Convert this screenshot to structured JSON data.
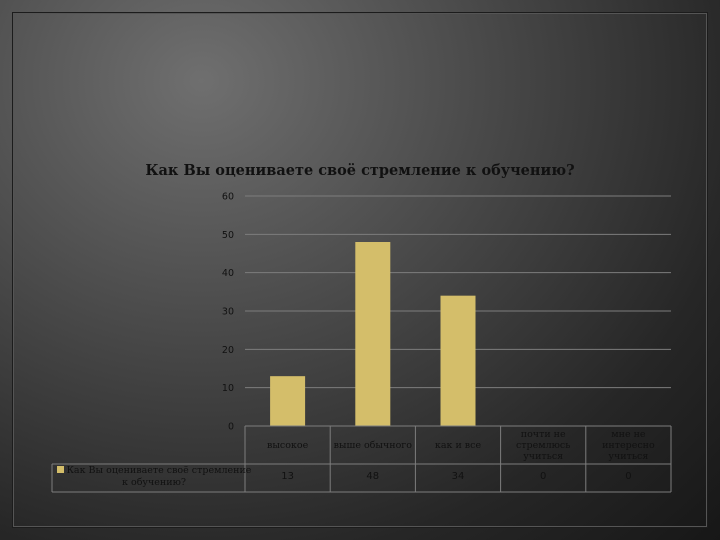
{
  "chart_data": {
    "type": "bar",
    "title": "Как Вы оцениваете своё стремление к обучению?",
    "categories": [
      "высокое",
      "выше обычного",
      "как и все",
      "почти не стремлюсь учиться",
      "мне не интересно учиться"
    ],
    "series": [
      {
        "name": "Как Вы оцениваете своё стремление к обучению?",
        "values": [
          13,
          48,
          34,
          0,
          0
        ]
      }
    ],
    "yticks": [
      "0",
      "10",
      "20",
      "30",
      "40",
      "50",
      "60"
    ],
    "value_labels": [
      "13",
      "48",
      "34",
      "0",
      "0"
    ],
    "ylim": [
      0,
      60
    ],
    "grid": true,
    "legend": "bottom-left-table",
    "bar_color": "#d4be6a"
  }
}
